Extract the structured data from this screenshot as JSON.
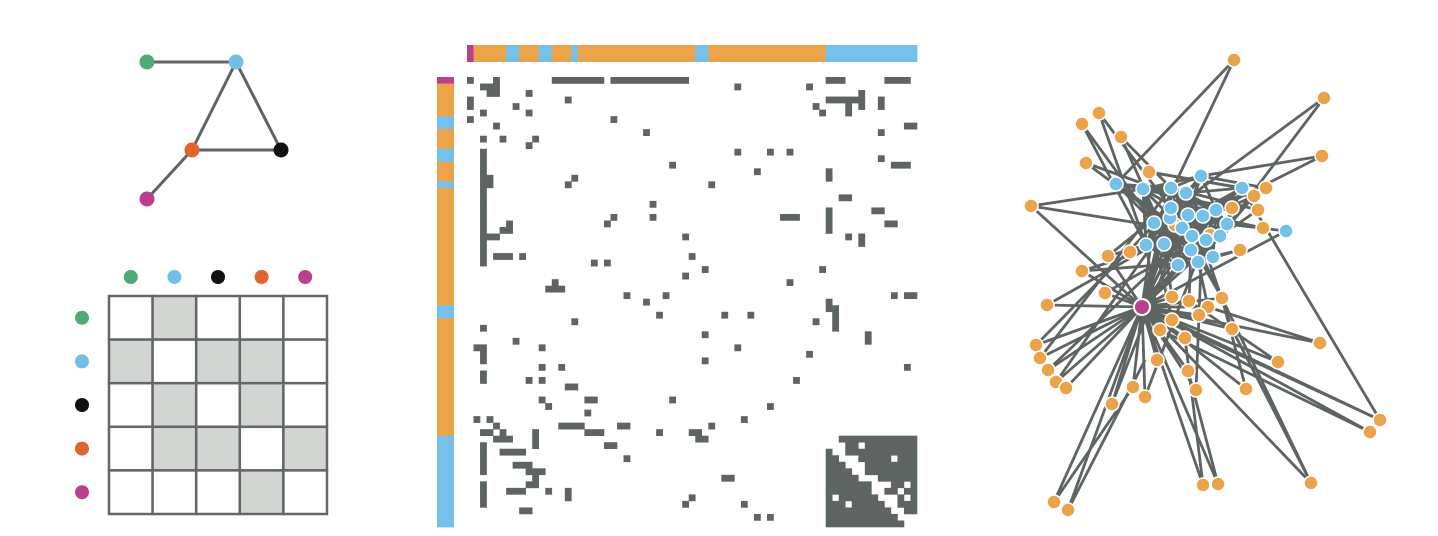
{
  "colors": {
    "green": "#4faa78",
    "blue": "#72bfe6",
    "black": "#111111",
    "orange": "#e0642e",
    "magenta": "#b8408c",
    "community_orange": "#eba34a",
    "community_blue": "#74c0e8",
    "edge": "#5e6462",
    "cell_filled": "#d2d5d2",
    "grid_line": "#636866",
    "matrix_fill": "#5e6462"
  },
  "small_graph": {
    "nodes": [
      {
        "id": "green",
        "color": "green"
      },
      {
        "id": "blue",
        "color": "blue"
      },
      {
        "id": "orange",
        "color": "orange"
      },
      {
        "id": "black",
        "color": "black"
      },
      {
        "id": "magenta",
        "color": "magenta"
      }
    ],
    "edges": [
      [
        "green",
        "blue"
      ],
      [
        "blue",
        "orange"
      ],
      [
        "blue",
        "black"
      ],
      [
        "orange",
        "black"
      ],
      [
        "orange",
        "magenta"
      ]
    ]
  },
  "small_matrix": {
    "order": [
      "green",
      "blue",
      "black",
      "orange",
      "magenta"
    ],
    "cells": [
      [
        0,
        1,
        0,
        0,
        0
      ],
      [
        1,
        0,
        1,
        1,
        0
      ],
      [
        0,
        1,
        0,
        1,
        0
      ],
      [
        0,
        1,
        1,
        0,
        1
      ],
      [
        0,
        0,
        0,
        1,
        0
      ]
    ]
  },
  "large_matrix": {
    "community_bar": [
      {
        "color": "magenta",
        "length": 1
      },
      {
        "color": "community_orange",
        "length": 5
      },
      {
        "color": "community_blue",
        "length": 2
      },
      {
        "color": "community_orange",
        "length": 3
      },
      {
        "color": "community_blue",
        "length": 2
      },
      {
        "color": "community_orange",
        "length": 3
      },
      {
        "color": "community_blue",
        "length": 1
      },
      {
        "color": "community_orange",
        "length": 18
      },
      {
        "color": "community_blue",
        "length": 2
      },
      {
        "color": "community_orange",
        "length": 18
      },
      {
        "color": "community_blue",
        "length": 14
      }
    ]
  },
  "large_graph": {
    "hub_color": "magenta",
    "blue_cluster_size": 24,
    "orange_node_count": 58
  }
}
